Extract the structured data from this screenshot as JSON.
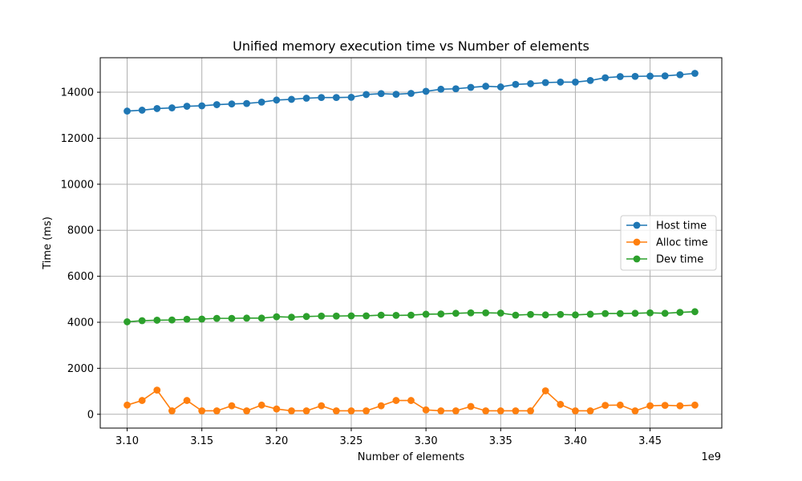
{
  "chart_data": {
    "type": "line",
    "title": "Unified memory execution time vs Number of elements",
    "xlabel": "Number of elements",
    "ylabel": "Time (ms)",
    "x_offset_label": "1e9",
    "xlim": [
      3.082,
      3.498
    ],
    "ylim": [
      -600,
      15500
    ],
    "x_ticks": [
      3.1,
      3.15,
      3.2,
      3.25,
      3.3,
      3.35,
      3.4,
      3.45
    ],
    "x_tick_labels": [
      "3.10",
      "3.15",
      "3.20",
      "3.25",
      "3.30",
      "3.35",
      "3.40",
      "3.45"
    ],
    "y_ticks": [
      0,
      2000,
      4000,
      6000,
      8000,
      10000,
      12000,
      14000
    ],
    "y_tick_labels": [
      "0",
      "2000",
      "4000",
      "6000",
      "8000",
      "10000",
      "12000",
      "14000"
    ],
    "grid": true,
    "legend_position": "center-right",
    "x": [
      3.1,
      3.11,
      3.12,
      3.13,
      3.14,
      3.15,
      3.16,
      3.17,
      3.18,
      3.19,
      3.2,
      3.21,
      3.22,
      3.23,
      3.24,
      3.25,
      3.26,
      3.27,
      3.28,
      3.29,
      3.3,
      3.31,
      3.32,
      3.33,
      3.34,
      3.35,
      3.36,
      3.37,
      3.38,
      3.39,
      3.4,
      3.41,
      3.42,
      3.43,
      3.44,
      3.45,
      3.46,
      3.47,
      3.48
    ],
    "series": [
      {
        "name": "Host time",
        "color": "#1f77b4",
        "values": [
          13180,
          13220,
          13290,
          13320,
          13390,
          13410,
          13460,
          13490,
          13510,
          13570,
          13660,
          13690,
          13740,
          13770,
          13770,
          13780,
          13900,
          13940,
          13910,
          13950,
          14040,
          14130,
          14150,
          14210,
          14260,
          14230,
          14340,
          14370,
          14420,
          14440,
          14440,
          14510,
          14630,
          14680,
          14690,
          14700,
          14710,
          14760,
          14820
        ]
      },
      {
        "name": "Alloc time",
        "color": "#ff7f0e",
        "values": [
          400,
          600,
          1050,
          150,
          600,
          150,
          150,
          370,
          150,
          400,
          230,
          150,
          150,
          370,
          150,
          150,
          150,
          370,
          600,
          600,
          190,
          150,
          150,
          340,
          150,
          150,
          150,
          150,
          1020,
          430,
          150,
          150,
          390,
          400,
          150,
          370,
          390,
          370,
          400
        ]
      },
      {
        "name": "Dev time",
        "color": "#2ca02c",
        "values": [
          4020,
          4070,
          4090,
          4100,
          4130,
          4140,
          4170,
          4170,
          4180,
          4180,
          4240,
          4220,
          4250,
          4270,
          4270,
          4280,
          4280,
          4310,
          4300,
          4310,
          4350,
          4360,
          4390,
          4410,
          4410,
          4400,
          4310,
          4340,
          4320,
          4340,
          4320,
          4350,
          4380,
          4380,
          4390,
          4410,
          4390,
          4430,
          4460
        ]
      }
    ]
  }
}
